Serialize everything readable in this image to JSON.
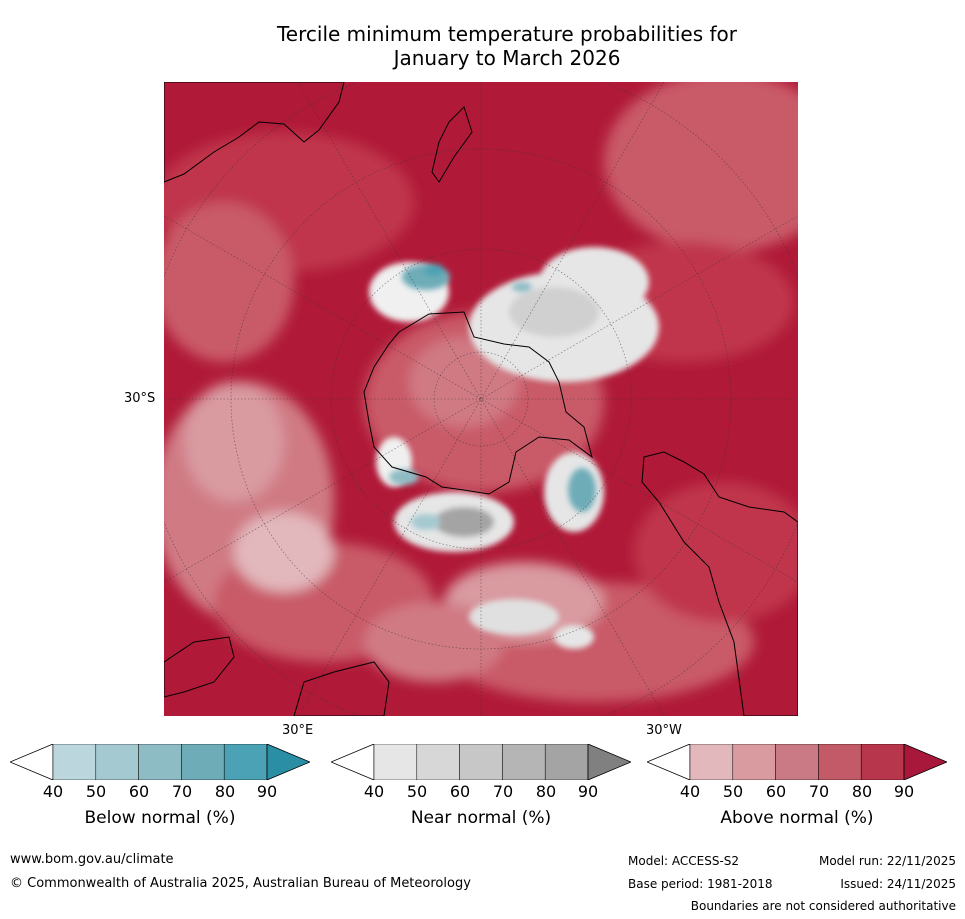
{
  "title": {
    "line1": "Tercile minimum temperature probabilities for",
    "line2": "January to March 2026"
  },
  "map": {
    "projection": "south-polar-stereographic",
    "labels": {
      "lat_30s": "30°S",
      "lon_30e": "30°E",
      "lon_30w": "30°W"
    },
    "colors": {
      "above_90": "#b01a38",
      "above_80": "#c0364c",
      "above_70": "#c95a68",
      "above_60": "#d07a84",
      "above_50": "#d99aa0",
      "above_40": "#e2b8bc",
      "near": "#d8d8d8",
      "near_dark": "#a4a4a4",
      "below": "#4aa2b4"
    }
  },
  "colorbars": [
    {
      "label": "Below normal (%)",
      "ticks": [
        "40",
        "50",
        "60",
        "70",
        "80",
        "90"
      ],
      "colors": [
        "#ffffff",
        "#bcd6dd",
        "#a5c9d0",
        "#8ebcc4",
        "#6eacb8",
        "#4aa2b4",
        "#2a8ea4"
      ]
    },
    {
      "label": "Near normal (%)",
      "ticks": [
        "40",
        "50",
        "60",
        "70",
        "80",
        "90"
      ],
      "colors": [
        "#ffffff",
        "#e6e6e6",
        "#d7d7d7",
        "#c7c7c7",
        "#b5b5b5",
        "#a4a4a4",
        "#808080"
      ]
    },
    {
      "label": "Above normal (%)",
      "ticks": [
        "40",
        "50",
        "60",
        "70",
        "80",
        "90"
      ],
      "colors": [
        "#ffffff",
        "#e2b8bc",
        "#d99aa0",
        "#c97a84",
        "#c25a68",
        "#b8364c",
        "#a8183a"
      ]
    }
  ],
  "footer": {
    "website": "www.bom.gov.au/climate",
    "copyright": "© Commonwealth of Australia 2025, Australian Bureau of Meteorology",
    "model": "Model: ACCESS-S2",
    "model_run": "Model run: 22/11/2025",
    "base_period": "Base period: 1981-2018",
    "issued": "Issued: 24/11/2025",
    "disclaimer": "Boundaries are not considered authoritative"
  }
}
